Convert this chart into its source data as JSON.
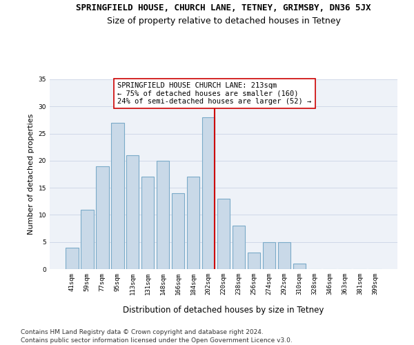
{
  "title": "SPRINGFIELD HOUSE, CHURCH LANE, TETNEY, GRIMSBY, DN36 5JX",
  "subtitle": "Size of property relative to detached houses in Tetney",
  "xlabel": "Distribution of detached houses by size in Tetney",
  "ylabel": "Number of detached properties",
  "categories": [
    "41sqm",
    "59sqm",
    "77sqm",
    "95sqm",
    "113sqm",
    "131sqm",
    "148sqm",
    "166sqm",
    "184sqm",
    "202sqm",
    "220sqm",
    "238sqm",
    "256sqm",
    "274sqm",
    "292sqm",
    "310sqm",
    "328sqm",
    "346sqm",
    "363sqm",
    "381sqm",
    "399sqm"
  ],
  "values": [
    4,
    11,
    19,
    27,
    21,
    17,
    20,
    14,
    17,
    28,
    13,
    8,
    3,
    5,
    5,
    1,
    0,
    0,
    0,
    0,
    0
  ],
  "bar_color": "#c9d9e8",
  "bar_edgecolor": "#7aaac8",
  "bar_linewidth": 0.8,
  "vline_color": "#cc0000",
  "vline_linewidth": 1.5,
  "annotation_text": "SPRINGFIELD HOUSE CHURCH LANE: 213sqm\n← 75% of detached houses are smaller (160)\n24% of semi-detached houses are larger (52) →",
  "annotation_box_color": "#ffffff",
  "annotation_box_edgecolor": "#cc0000",
  "ylim": [
    0,
    35
  ],
  "yticks": [
    0,
    5,
    10,
    15,
    20,
    25,
    30,
    35
  ],
  "grid_color": "#d0d8e8",
  "background_color": "#eef2f8",
  "footer1": "Contains HM Land Registry data © Crown copyright and database right 2024.",
  "footer2": "Contains public sector information licensed under the Open Government Licence v3.0.",
  "title_fontsize": 9,
  "subtitle_fontsize": 9,
  "xlabel_fontsize": 8.5,
  "ylabel_fontsize": 8,
  "tick_fontsize": 6.5,
  "annotation_fontsize": 7.5,
  "footer_fontsize": 6.5
}
